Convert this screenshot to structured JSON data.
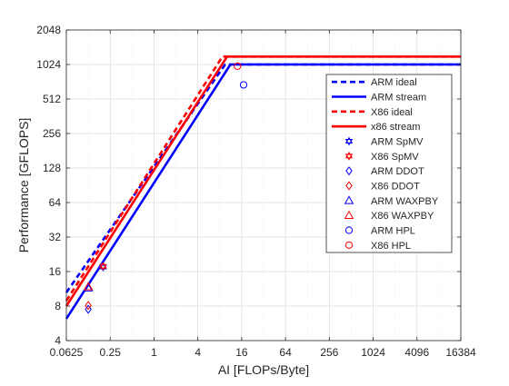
{
  "chart_data": {
    "type": "line",
    "xlabel": "AI [FLOPs/Byte]",
    "ylabel": "Performance [GFLOPS]",
    "x_scale": "log2",
    "y_scale": "log2",
    "xlim": [
      0.0625,
      16384
    ],
    "ylim": [
      4,
      2048
    ],
    "grid": true,
    "legend_position": "right",
    "xticks": [
      {
        "value": 0.0625,
        "label": "0.0625"
      },
      {
        "value": 0.25,
        "label": "0.25"
      },
      {
        "value": 1,
        "label": "1"
      },
      {
        "value": 4,
        "label": "4"
      },
      {
        "value": 16,
        "label": "16"
      },
      {
        "value": 64,
        "label": "64"
      },
      {
        "value": 256,
        "label": "256"
      },
      {
        "value": 1024,
        "label": "1024"
      },
      {
        "value": 4096,
        "label": "4096"
      },
      {
        "value": 16384,
        "label": "16384"
      }
    ],
    "yticks": [
      {
        "value": 4,
        "label": "4"
      },
      {
        "value": 8,
        "label": "8"
      },
      {
        "value": 16,
        "label": "16"
      },
      {
        "value": 32,
        "label": "32"
      },
      {
        "value": 64,
        "label": "64"
      },
      {
        "value": 128,
        "label": "128"
      },
      {
        "value": 256,
        "label": "256"
      },
      {
        "value": 512,
        "label": "512"
      },
      {
        "value": 1024,
        "label": "1024"
      },
      {
        "value": 2048,
        "label": "2048"
      }
    ],
    "series": [
      {
        "name": "ARM ideal",
        "kind": "line",
        "style": "dashed",
        "color": "#0000ff",
        "x": [
          0.0625,
          9.5,
          16384
        ],
        "y": [
          10.5,
          1024,
          1024
        ]
      },
      {
        "name": "ARM stream",
        "kind": "line",
        "style": "solid",
        "color": "#0000ff",
        "x": [
          0.0625,
          11.2,
          16384
        ],
        "y": [
          6.2,
          1024,
          1024
        ]
      },
      {
        "name": "X86 ideal",
        "kind": "line",
        "style": "dashed",
        "color": "#ff0000",
        "x": [
          0.0625,
          8.7,
          16384
        ],
        "y": [
          8.9,
          1200,
          1200
        ]
      },
      {
        "name": "x86 stream",
        "kind": "line",
        "style": "solid",
        "color": "#ff0000",
        "x": [
          0.0625,
          10.1,
          16384
        ],
        "y": [
          8.0,
          1200,
          1200
        ]
      },
      {
        "name": "ARM SpMV",
        "kind": "marker",
        "marker": "hexagram",
        "color": "#0000ff",
        "x": [
          0.2
        ],
        "y": [
          17.5
        ]
      },
      {
        "name": "X86 SpMV",
        "kind": "marker",
        "marker": "hexagram",
        "color": "#ff0000",
        "x": [
          0.2
        ],
        "y": [
          17.8
        ]
      },
      {
        "name": "ARM DDOT",
        "kind": "marker",
        "marker": "diamond",
        "color": "#0000ff",
        "x": [
          0.125
        ],
        "y": [
          7.5
        ]
      },
      {
        "name": "X86 DDOT",
        "kind": "marker",
        "marker": "diamond",
        "color": "#ff0000",
        "x": [
          0.125
        ],
        "y": [
          8.1
        ]
      },
      {
        "name": "ARM WAXPBY",
        "kind": "marker",
        "marker": "triangle",
        "color": "#0000ff",
        "x": [
          0.125
        ],
        "y": [
          11.5
        ]
      },
      {
        "name": "X86 WAXPBY",
        "kind": "marker",
        "marker": "triangle",
        "color": "#ff0000",
        "x": [
          0.125
        ],
        "y": [
          11.8
        ]
      },
      {
        "name": "ARM HPL",
        "kind": "marker",
        "marker": "circle",
        "color": "#0000ff",
        "x": [
          17
        ],
        "y": [
          680
        ]
      },
      {
        "name": "X86 HPL",
        "kind": "marker",
        "marker": "circle",
        "color": "#ff0000",
        "x": [
          14
        ],
        "y": [
          990
        ]
      }
    ]
  }
}
